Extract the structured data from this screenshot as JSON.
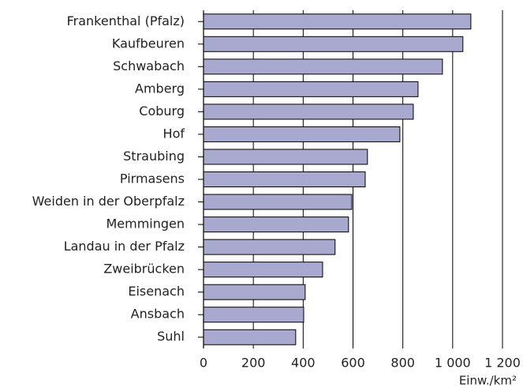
{
  "chart_data": {
    "type": "bar",
    "orientation": "horizontal",
    "categories": [
      "Frankenthal (Pfalz)",
      "Kaufbeuren",
      "Schwabach",
      "Amberg",
      "Coburg",
      "Hof",
      "Straubing",
      "Pirmasens",
      "Weiden in der Oberpfalz",
      "Memmingen",
      "Landau in der Pfalz",
      "Zweibrücken",
      "Eisenach",
      "Ansbach",
      "Suhl"
    ],
    "values": [
      1073,
      1041,
      959,
      861,
      842,
      788,
      658,
      649,
      595,
      582,
      528,
      478,
      408,
      402,
      370
    ],
    "color": "#a9a9cf",
    "xlabel": "Einw./km²",
    "xlim": [
      0,
      1200
    ],
    "xticks": [
      0,
      200,
      400,
      600,
      800,
      {
        "value": 1000,
        "label": "1 000"
      },
      {
        "value": 1200,
        "label": "1 200"
      }
    ],
    "grid": true
  }
}
